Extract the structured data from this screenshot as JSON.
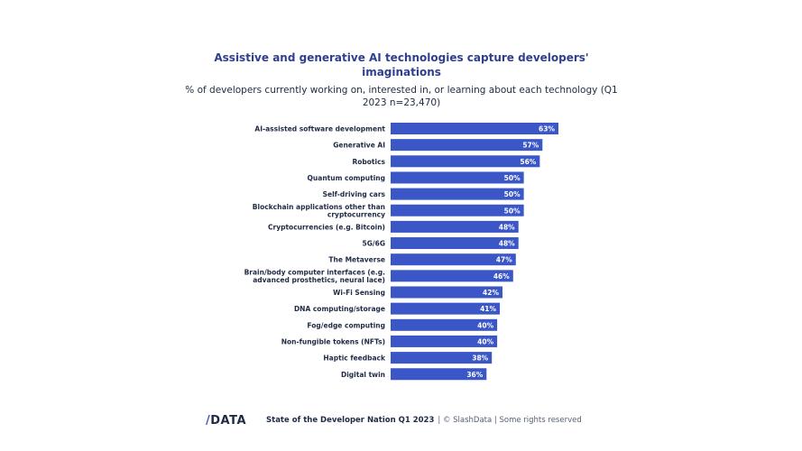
{
  "title": "Assistive and generative AI technologies capture developers' imaginations",
  "subtitle": "% of developers currently working on, interested in, or learning about each technology (Q1 2023 n=23,470)",
  "footer": {
    "logo_slash": "/",
    "logo_text": "DATA",
    "report": "State of the Developer Nation Q1 2023",
    "copyright": "| © SlashData | Some rights reserved"
  },
  "colors": {
    "bar": "#3a56c7",
    "bar_label": "#ffffff",
    "category_label": "#1f2a44"
  },
  "chart_data": {
    "type": "bar",
    "orientation": "horizontal",
    "title": "Assistive and generative AI technologies capture developers' imaginations",
    "subtitle": "% of developers currently working on, interested in, or learning about each technology (Q1 2023 n=23,470)",
    "xlim": [
      0,
      63
    ],
    "grid": false,
    "legend": "none",
    "categories": [
      "AI-assisted software development",
      "Generative AI",
      "Robotics",
      "Quantum computing",
      "Self-driving cars",
      "Blockchain applications other than cryptocurrency",
      "Cryptocurrencies (e.g. Bitcoin)",
      "5G/6G",
      "The Metaverse",
      "Brain/body computer interfaces (e.g. advanced prosthetics, neural lace)",
      "Wi-Fi Sensing",
      "DNA computing/storage",
      "Fog/edge computing",
      "Non-fungible tokens (NFTs)",
      "Haptic feedback",
      "Digital twin"
    ],
    "category_lines": [
      [
        "AI-assisted software development"
      ],
      [
        "Generative AI"
      ],
      [
        "Robotics"
      ],
      [
        "Quantum computing"
      ],
      [
        "Self-driving cars"
      ],
      [
        "Blockchain applications other than",
        "cryptocurrency"
      ],
      [
        "Cryptocurrencies (e.g. Bitcoin)"
      ],
      [
        "5G/6G"
      ],
      [
        "The Metaverse"
      ],
      [
        "Brain/body computer interfaces (e.g.",
        "advanced prosthetics, neural lace)"
      ],
      [
        "Wi-Fi Sensing"
      ],
      [
        "DNA computing/storage"
      ],
      [
        "Fog/edge computing"
      ],
      [
        "Non-fungible tokens (NFTs)"
      ],
      [
        "Haptic feedback"
      ],
      [
        "Digital twin"
      ]
    ],
    "values": [
      63,
      57,
      56,
      50,
      50,
      50,
      48,
      48,
      47,
      46,
      42,
      41,
      40,
      40,
      38,
      36
    ],
    "value_labels": [
      "63%",
      "57%",
      "56%",
      "50%",
      "50%",
      "50%",
      "48%",
      "48%",
      "47%",
      "46%",
      "42%",
      "41%",
      "40%",
      "40%",
      "38%",
      "36%"
    ]
  }
}
